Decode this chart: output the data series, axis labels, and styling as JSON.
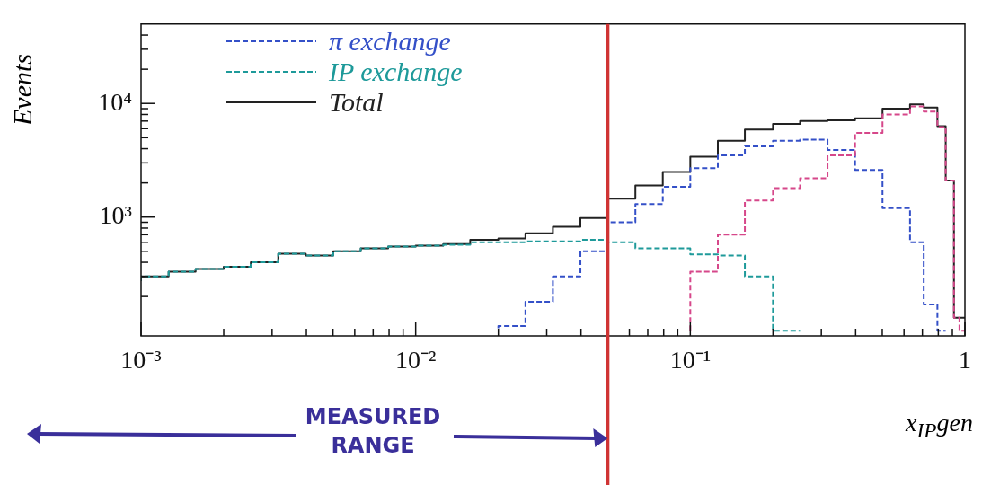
{
  "chart_data": {
    "type": "step",
    "ylabel": "Events",
    "xlabel": "x$_{IP}$gen",
    "log": "xy",
    "grid": false,
    "legend": "top left",
    "xlim": [
      0.001,
      1
    ],
    "ylim": [
      90,
      50000
    ],
    "xticks": [
      {
        "value": 0.001,
        "label": "10⁻³"
      },
      {
        "value": 0.002,
        "label": null
      },
      {
        "value": 0.003,
        "label": null
      },
      {
        "value": 0.004,
        "label": null
      },
      {
        "value": 0.005,
        "label": null
      },
      {
        "value": 0.006,
        "label": null
      },
      {
        "value": 0.007,
        "label": null
      },
      {
        "value": 0.008,
        "label": null
      },
      {
        "value": 0.009,
        "label": null
      },
      {
        "value": 0.01,
        "label": "10⁻²"
      },
      {
        "value": 0.02,
        "label": null
      },
      {
        "value": 0.03,
        "label": null
      },
      {
        "value": 0.04,
        "label": null
      },
      {
        "value": 0.05,
        "label": null
      },
      {
        "value": 0.06,
        "label": null
      },
      {
        "value": 0.07,
        "label": null
      },
      {
        "value": 0.08,
        "label": null
      },
      {
        "value": 0.09,
        "label": null
      },
      {
        "value": 0.1,
        "label": "10⁻¹"
      },
      {
        "value": 0.2,
        "label": null
      },
      {
        "value": 0.3,
        "label": null
      },
      {
        "value": 0.4,
        "label": null
      },
      {
        "value": 0.5,
        "label": null
      },
      {
        "value": 0.6,
        "label": null
      },
      {
        "value": 0.7,
        "label": null
      },
      {
        "value": 0.8,
        "label": null
      },
      {
        "value": 0.9,
        "label": null
      },
      1
    ],
    "yticks": [
      {
        "value": 200,
        "label": null
      },
      {
        "value": 300,
        "label": null
      },
      {
        "value": 400,
        "label": null
      },
      {
        "value": 500,
        "label": null
      },
      {
        "value": 600,
        "label": null
      },
      {
        "value": 700,
        "label": null
      },
      {
        "value": 800,
        "label": null
      },
      {
        "value": 900,
        "label": null
      },
      {
        "value": 1000,
        "label": "10³"
      },
      {
        "value": 2000,
        "label": null
      },
      {
        "value": 3000,
        "label": null
      },
      {
        "value": 4000,
        "label": null
      },
      {
        "value": 5000,
        "label": null
      },
      {
        "value": 6000,
        "label": null
      },
      {
        "value": 7000,
        "label": null
      },
      {
        "value": 8000,
        "label": null
      },
      {
        "value": 9000,
        "label": null
      },
      {
        "value": 10000,
        "label": "10⁴"
      },
      {
        "value": 20000,
        "label": null
      },
      {
        "value": 30000,
        "label": null
      },
      {
        "value": 40000,
        "label": null
      }
    ],
    "x": [
      0.001,
      0.00126,
      0.00158,
      0.002,
      0.00251,
      0.00316,
      0.00398,
      0.00501,
      0.00631,
      0.00794,
      0.01,
      0.0126,
      0.0158,
      0.02,
      0.0251,
      0.0316,
      0.0398,
      0.0501,
      0.0631,
      0.0794,
      0.1,
      0.126,
      0.158,
      0.2,
      0.251,
      0.316,
      0.398,
      0.501,
      0.631,
      0.708,
      0.794,
      0.851,
      0.912,
      0.955,
      1
    ],
    "series": [
      {
        "color": "#d6478a",
        "line_style": "dashed",
        "values": [
          null,
          null,
          null,
          null,
          null,
          null,
          null,
          null,
          null,
          null,
          null,
          null,
          null,
          null,
          null,
          null,
          null,
          null,
          null,
          null,
          100,
          330,
          700,
          1400,
          1800,
          2200,
          3500,
          5500,
          8000,
          9400,
          8500,
          6200,
          2100,
          130,
          100
        ]
      },
      {
        "name": "π exchange",
        "color": "#3450c8",
        "line_style": "dashed",
        "values": [
          null,
          null,
          null,
          null,
          null,
          null,
          null,
          null,
          null,
          null,
          null,
          null,
          null,
          105,
          110,
          180,
          300,
          500,
          900,
          1300,
          1850,
          2700,
          3500,
          4200,
          4700,
          4800,
          3900,
          2600,
          1200,
          600,
          170,
          100,
          null,
          null,
          null
        ]
      },
      {
        "name": "IP exchange",
        "color": "#1e9a9a",
        "line_style": "dashed",
        "values": [
          275,
          300,
          330,
          350,
          365,
          400,
          475,
          460,
          500,
          530,
          550,
          560,
          570,
          600,
          600,
          610,
          610,
          630,
          600,
          530,
          530,
          470,
          460,
          300,
          100,
          null,
          null,
          null,
          null,
          null,
          null,
          null,
          null,
          null,
          null
        ]
      },
      {
        "name": "Total",
        "color": "#222222",
        "line_style": "solid",
        "values": [
          275,
          300,
          330,
          350,
          365,
          400,
          475,
          460,
          500,
          530,
          550,
          560,
          580,
          630,
          650,
          720,
          820,
          980,
          1450,
          1900,
          2500,
          3400,
          4700,
          5900,
          6600,
          7000,
          7100,
          7400,
          9000,
          9800,
          9200,
          6300,
          2100,
          130,
          130
        ]
      }
    ],
    "ref_lines": [
      {
        "axis": "x",
        "value": 0.05,
        "color": "#d03434"
      }
    ],
    "annotations": [
      "MEASURED RANGE"
    ]
  }
}
